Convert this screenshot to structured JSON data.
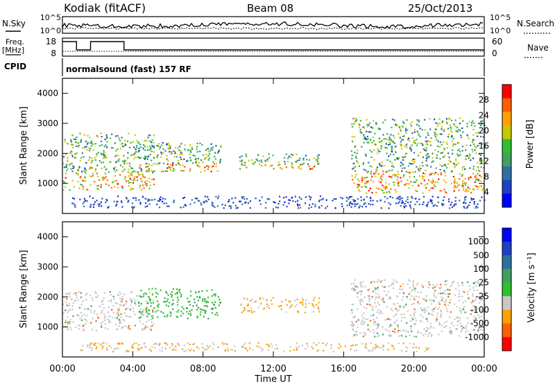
{
  "header": {
    "station": "Kodiak (fitACF)",
    "beam": "Beam 08",
    "date": "25/Oct/2013"
  },
  "top_panels": {
    "nsky_label": "N.Sky",
    "nsearch_label": "N.Search",
    "noise_ticks_left": [
      "10^5",
      "10^0"
    ],
    "noise_ticks_right": [
      "10^5",
      "10^0"
    ],
    "freq_label_1": "Freq.",
    "freq_label_2": "[MHz]",
    "freq_ticks": [
      "18",
      "8"
    ],
    "nave_label": "Nave",
    "nave_ticks": [
      "60",
      "0"
    ],
    "cpid_label": "CPID",
    "cpid_text": "normalsound (fast) 157 RF"
  },
  "colors": {
    "power_scale": [
      "#0000ff",
      "#2040c0",
      "#3070a0",
      "#40a060",
      "#30c030",
      "#c8c800",
      "#ffa000",
      "#ff6000",
      "#ff0000"
    ],
    "velocity_scale": [
      "#0000ff",
      "#2040c0",
      "#3070a0",
      "#40a060",
      "#30c030",
      "#c8c8c8",
      "#ffa000",
      "#ff6000",
      "#ff0000"
    ]
  },
  "chart_data": [
    {
      "type": "heatmap",
      "name": "power",
      "ylabel": "Slant Range [km]",
      "xlim": [
        "00:00",
        "24:00"
      ],
      "ylim": [
        0,
        4500
      ],
      "yticks": [
        "1000",
        "2000",
        "3000",
        "4000"
      ],
      "colorbar": {
        "label": "Power [dB]",
        "ticks": [
          "28",
          "24",
          "20",
          "16",
          "12",
          "8",
          "4"
        ]
      },
      "regions": [
        {
          "x": [
            0.0,
            5.2
          ],
          "y": [
            800,
            2700
          ],
          "dominant": "green-orange"
        },
        {
          "x": [
            4.3,
            9.0
          ],
          "y": [
            1400,
            2400
          ],
          "dominant": "blue-green"
        },
        {
          "x": [
            10.0,
            14.6
          ],
          "y": [
            1500,
            2000
          ],
          "dominant": "blue-orange"
        },
        {
          "x": [
            16.4,
            24.0
          ],
          "y": [
            700,
            3200
          ],
          "dominant": "green-red"
        },
        {
          "x": [
            0.5,
            24.0
          ],
          "y": [
            200,
            600
          ],
          "dominant": "blue"
        }
      ]
    },
    {
      "type": "heatmap",
      "name": "velocity",
      "ylabel": "Slant Range [km]",
      "xlabel": "Time UT",
      "xlim": [
        "00:00",
        "24:00"
      ],
      "ylim": [
        0,
        4500
      ],
      "xticks": [
        "00:00",
        "04:00",
        "08:00",
        "12:00",
        "16:00",
        "20:00",
        "00:00"
      ],
      "yticks": [
        "1000",
        "2000",
        "3000",
        "4000"
      ],
      "colorbar": {
        "label": "Velocity [m s⁻¹]",
        "ticks": [
          "1000",
          "500",
          "100",
          "25",
          "-25",
          "-100",
          "-500",
          "-1000"
        ]
      },
      "regions": [
        {
          "x": [
            0.0,
            5.2
          ],
          "y": [
            900,
            2200
          ],
          "dominant": "grey"
        },
        {
          "x": [
            4.3,
            9.0
          ],
          "y": [
            1300,
            2300
          ],
          "dominant": "green"
        },
        {
          "x": [
            10.0,
            14.6
          ],
          "y": [
            1500,
            2000
          ],
          "dominant": "orange"
        },
        {
          "x": [
            16.4,
            24.0
          ],
          "y": [
            700,
            2600
          ],
          "dominant": "grey"
        },
        {
          "x": [
            1.0,
            21.0
          ],
          "y": [
            200,
            500
          ],
          "dominant": "yellow"
        }
      ]
    }
  ]
}
